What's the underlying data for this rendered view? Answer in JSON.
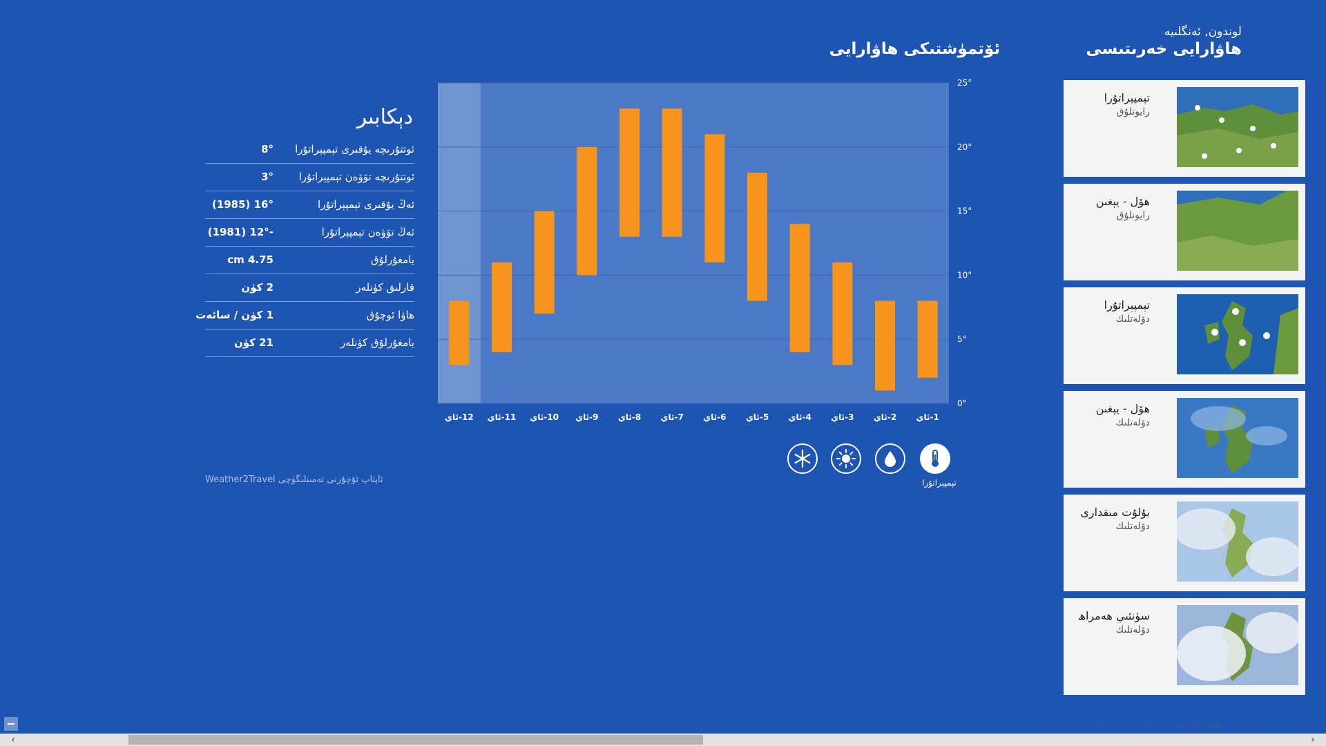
{
  "header": {
    "location": "لوندون, ئەنگلىيە",
    "maps_title": "هاۋارايى خەرىتىسى",
    "climate_title": "ئۆتمۈشتىكى هاۋارايى"
  },
  "map_tiles": [
    {
      "title": "تېمپېراتۇرا",
      "subtitle": "رايونلۇق"
    },
    {
      "title": "هۆل - يېغىن",
      "subtitle": "رايونلۇق"
    },
    {
      "title": "تېمپېراتۇرا",
      "subtitle": "دۆلەتلىك"
    },
    {
      "title": "هۆل - يېغىن",
      "subtitle": "دۆلەتلىك"
    },
    {
      "title": "بۇلۇت مىقدارى",
      "subtitle": "دۆلەتلىك"
    },
    {
      "title": "سۈنئىي ھەمراھ",
      "subtitle": "دۆلەتلىك"
    }
  ],
  "stats": {
    "month": "دېكابىر",
    "rows": [
      {
        "label": "ئوتتۇرىچە يۇقىرى تېمپېراتۇرا",
        "value": "8°"
      },
      {
        "label": "ئوتتۇرىچە تۆۋەن تېمپېراتۇرا",
        "value": "3°"
      },
      {
        "label": "ئەڭ يۇقىرى تېمپېراتۇرا",
        "value": "16° (1985)"
      },
      {
        "label": "ئەڭ تۆۋەن تېمپېراتۇرا",
        "value": "-12° (1981)"
      },
      {
        "label": "يامغۇرلۇق",
        "value": "4.75 cm"
      },
      {
        "label": "قارلىق كۈنلەر",
        "value": "2 كۈن"
      },
      {
        "label": "هاۋا ئوچۇق",
        "value": "1 كۈن / سائەت"
      },
      {
        "label": "يامغۇرلۇق كۈنلەر",
        "value": "21 كۈن"
      }
    ],
    "source": "ئاپتاپ ئۇچۇرنى تەمىنلىگۈچى Weather2Travel"
  },
  "chart_data": {
    "type": "bar",
    "subtype": "range",
    "categories": [
      "1-ئاي",
      "2-ئاي",
      "3-ئاي",
      "4-ئاي",
      "5-ئاي",
      "6-ئاي",
      "7-ئاي",
      "8-ئاي",
      "9-ئاي",
      "10-ئاي",
      "11-ئاي",
      "12-ئاي"
    ],
    "low": [
      2,
      1,
      3,
      4,
      8,
      11,
      13,
      13,
      10,
      7,
      4,
      3
    ],
    "high": [
      8,
      8,
      11,
      14,
      18,
      21,
      23,
      23,
      20,
      15,
      11,
      8
    ],
    "ylim": [
      0,
      25
    ],
    "yticks": [
      "0°",
      "5°",
      "10°",
      "15°",
      "20°",
      "25°"
    ],
    "x_direction": "right-to-left",
    "highlighted_category": "12-ئاي",
    "grid": true,
    "bar_color": "#f7941d"
  },
  "metrics": {
    "selected_label": "تېمپېراتۇرا",
    "items": [
      "snow-icon",
      "sun-icon",
      "rain-drop-icon",
      "thermometer-icon"
    ]
  },
  "footer": {
    "updated": "بەت يېڭىلانغان ۋاقىت: 2012-يىل 12-دېكابىر 12:11:27",
    "minus": "−",
    "left_arrow": "‹",
    "right_arrow": "›"
  }
}
